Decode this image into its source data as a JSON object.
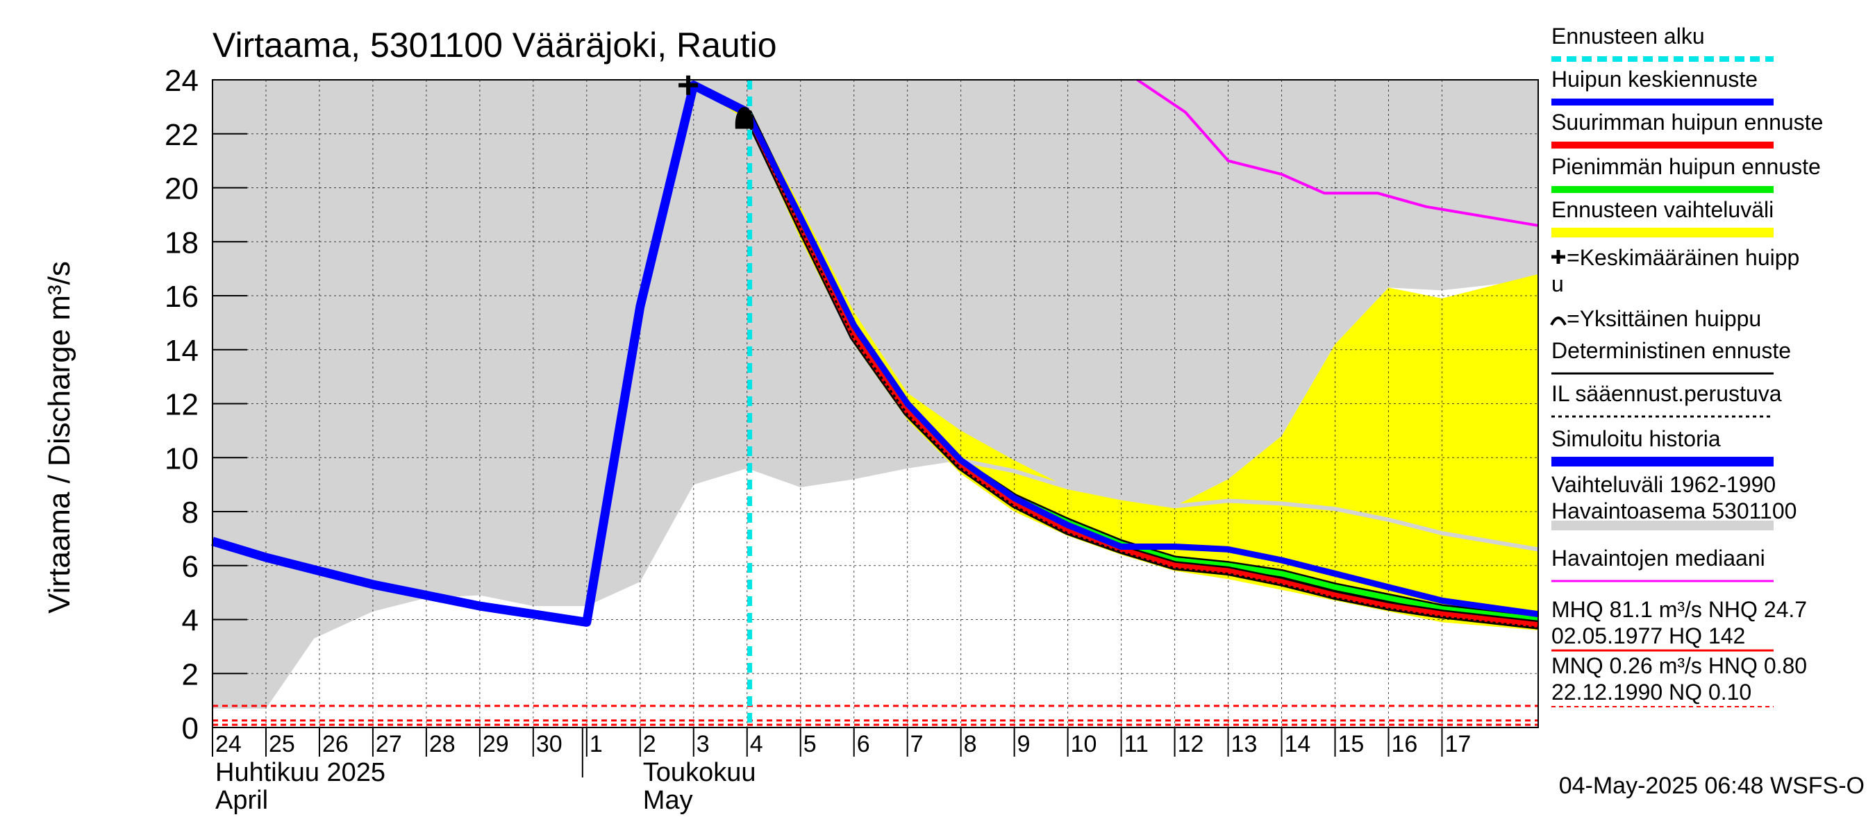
{
  "chart_data": {
    "type": "line",
    "title": "Virtaama, 5301100 Vääräjoki, Rautio",
    "ylabel": "Virtaama / Discharge    m³/s",
    "ylim": [
      0,
      24
    ],
    "yticks": [
      "0",
      "2",
      "4",
      "6",
      "8",
      "10",
      "12",
      "14",
      "16",
      "18",
      "20",
      "22",
      "24"
    ],
    "xlim": [
      24,
      48.8
    ],
    "xlabels": [
      {
        "x": 24,
        "label": "24"
      },
      {
        "x": 25,
        "label": "25"
      },
      {
        "x": 26,
        "label": "26"
      },
      {
        "x": 27,
        "label": "27"
      },
      {
        "x": 28,
        "label": "28"
      },
      {
        "x": 29,
        "label": "29"
      },
      {
        "x": 30,
        "label": "30"
      },
      {
        "x": 31,
        "label": "1"
      },
      {
        "x": 32,
        "label": "2"
      },
      {
        "x": 33,
        "label": "3"
      },
      {
        "x": 34,
        "label": "4"
      },
      {
        "x": 35,
        "label": "5"
      },
      {
        "x": 36,
        "label": "6"
      },
      {
        "x": 37,
        "label": "7"
      },
      {
        "x": 38,
        "label": "8"
      },
      {
        "x": 39,
        "label": "9"
      },
      {
        "x": 40,
        "label": "10"
      },
      {
        "x": 41,
        "label": "11"
      },
      {
        "x": 42,
        "label": "12"
      },
      {
        "x": 43,
        "label": "13"
      },
      {
        "x": 44,
        "label": "14"
      },
      {
        "x": 45,
        "label": "15"
      },
      {
        "x": 46,
        "label": "16"
      },
      {
        "x": 47,
        "label": "17"
      }
    ],
    "month_labels": [
      {
        "x": 24,
        "line1": "Huhtikuu  2025",
        "line2": "April"
      },
      {
        "x": 32,
        "line1": "Toukokuu",
        "line2": "May"
      }
    ],
    "forecast_start_x": 34.05,
    "series": [
      {
        "name": "Vaihteluväli 1962-1990 (upper)",
        "color": "#d3d3d3",
        "x": [
          24,
          25,
          26,
          27,
          28,
          29,
          30,
          31,
          32,
          33,
          34,
          35,
          36,
          37,
          38,
          39,
          40,
          41,
          42,
          43,
          44,
          45,
          46,
          47,
          48.8
        ],
        "values": [
          24,
          24,
          24,
          24,
          24,
          24,
          24,
          24,
          24,
          24,
          24,
          24,
          24,
          24,
          24,
          24,
          24,
          24,
          24,
          24,
          24,
          24,
          24,
          24,
          24
        ]
      },
      {
        "name": "Vaihteluväli 1962-1990 (lower)",
        "color": "#ffffff",
        "x": [
          24,
          25,
          25.9,
          27,
          28,
          29,
          30,
          31,
          32,
          33,
          34,
          35,
          36,
          37,
          38,
          39,
          40,
          41,
          42,
          43,
          44,
          45,
          46,
          47,
          48.8
        ],
        "values": [
          0.7,
          0.7,
          3.3,
          4.3,
          4.8,
          4.9,
          4.5,
          4.5,
          5.4,
          9.0,
          9.6,
          8.9,
          9.2,
          9.6,
          9.9,
          9.5,
          8.9,
          8.5,
          8.2,
          9.2,
          10.8,
          14.2,
          16.3,
          16.2,
          16.6
        ]
      },
      {
        "name": "Ennusteen vaihteluväli (upper)",
        "color": "#ffff00",
        "x": [
          33.2,
          34,
          35,
          36,
          37,
          38,
          39,
          40,
          41,
          42,
          43,
          44,
          45,
          46,
          47,
          48.8
        ],
        "values": [
          23.5,
          23.0,
          19.3,
          15.4,
          12.4,
          11.0,
          9.9,
          8.9,
          8.5,
          8.2,
          9.2,
          10.8,
          14.2,
          16.3,
          15.9,
          16.8
        ]
      },
      {
        "name": "Ennusteen vaihteluväli (lower)",
        "color": "#ffff00",
        "x": [
          33.2,
          34,
          35,
          36,
          37,
          38,
          39,
          40,
          41,
          42,
          43,
          44,
          45,
          46,
          47,
          48.8
        ],
        "values": [
          23.5,
          22.5,
          18.1,
          14.2,
          11.4,
          9.4,
          8.0,
          7.1,
          6.4,
          5.8,
          5.5,
          5.1,
          4.7,
          4.3,
          3.9,
          3.6
        ]
      },
      {
        "name": "Havaintojen mediaani",
        "color": "#ff00ff",
        "x": [
          41.3,
          42.2,
          43,
          44,
          44.8,
          45.8,
          46.7,
          48.8
        ],
        "values": [
          24.0,
          22.8,
          21.0,
          20.5,
          19.8,
          19.8,
          19.3,
          18.6
        ]
      },
      {
        "name": "Havaintoasema 5301100 median (grey)",
        "color": "#d3d3d3",
        "x": [
          38,
          39,
          40,
          41,
          42,
          43,
          44,
          45,
          46,
          47,
          48.8
        ],
        "values": [
          9.9,
          9.5,
          8.9,
          8.5,
          8.2,
          8.4,
          8.3,
          8.1,
          7.7,
          7.2,
          6.6
        ]
      },
      {
        "name": "Simuloitu historia",
        "color": "#0000ff",
        "x": [
          24,
          25,
          26,
          27,
          28,
          29,
          30,
          31,
          32,
          33,
          34
        ],
        "values": [
          6.9,
          6.3,
          5.8,
          5.3,
          4.9,
          4.5,
          4.2,
          3.9,
          15.6,
          23.8,
          22.8
        ]
      },
      {
        "name": "Suurimman huipun ennuste",
        "color": "#ff0000",
        "x": [
          34,
          35,
          36,
          37,
          38,
          39,
          40,
          41,
          42,
          43,
          44,
          45,
          46,
          47,
          48.8
        ],
        "values": [
          22.8,
          18.6,
          14.5,
          11.7,
          9.7,
          8.3,
          7.3,
          6.6,
          6.0,
          5.8,
          5.4,
          4.9,
          4.5,
          4.2,
          3.8
        ]
      },
      {
        "name": "Pienimmän huipun ennuste",
        "color": "#00ff00",
        "x": [
          34,
          35,
          36,
          37,
          38,
          39,
          40,
          41,
          42,
          43,
          44,
          45,
          46,
          47,
          48.8
        ],
        "values": [
          22.8,
          18.7,
          14.6,
          11.8,
          9.8,
          8.5,
          7.6,
          6.8,
          6.2,
          6.0,
          5.7,
          5.2,
          4.8,
          4.4,
          4.0
        ]
      },
      {
        "name": "IL sääennust.perustuva",
        "color": "#000000",
        "x": [
          34,
          35,
          36,
          37,
          38,
          39,
          40,
          41,
          42,
          43,
          44,
          45,
          46,
          47,
          48.8
        ],
        "values": [
          22.7,
          18.5,
          14.4,
          11.6,
          9.6,
          8.2,
          7.2,
          6.5,
          5.9,
          5.7,
          5.3,
          4.8,
          4.4,
          4.1,
          3.7
        ]
      },
      {
        "name": "Huipun keskiennuste",
        "color": "#0000ff",
        "x": [
          34,
          35,
          36,
          37,
          38,
          39,
          40,
          41,
          42,
          43,
          44,
          45,
          46,
          47,
          48.8
        ],
        "values": [
          22.8,
          18.9,
          14.9,
          12.0,
          9.9,
          8.5,
          7.5,
          6.7,
          6.7,
          6.6,
          6.2,
          5.7,
          5.2,
          4.7,
          4.2
        ]
      }
    ],
    "markers": [
      {
        "name": "Keskimääräinen huippu",
        "symbol": "plus",
        "x": 32.9,
        "y": 23.8
      },
      {
        "name": "Yksittäinen huippu",
        "symbol": "arc",
        "x": 33.95,
        "y": 22.7
      }
    ],
    "reference_lines": [
      {
        "name": "HNQ",
        "y": 0.8,
        "color": "#ff0000",
        "style": "dashed"
      },
      {
        "name": "MNQ",
        "y": 0.26,
        "color": "#ff0000",
        "style": "dashed"
      },
      {
        "name": "NQ",
        "y": 0.1,
        "color": "#ff0000",
        "style": "dashed"
      }
    ],
    "legend": {
      "items": [
        {
          "label": "Ennusteen alku",
          "color": "#00e5e5",
          "style": "dashed-thick"
        },
        {
          "label": "Huipun keskiennuste",
          "color": "#0000ff",
          "style": "solid-thick"
        },
        {
          "label": "Suurimman huipun ennuste",
          "color": "#ff0000",
          "style": "solid-thick"
        },
        {
          "label": "Pienimmän huipun ennuste",
          "color": "#00ee00",
          "style": "solid-thick"
        },
        {
          "label": "Ennusteen vaihteluväli",
          "color": "#ffff00",
          "style": "band"
        },
        {
          "label": "=Keskimääräinen huipp",
          "label2": "u",
          "color": "#000000",
          "style": "plus"
        },
        {
          "label": "=Yksittäinen huippu",
          "color": "#000000",
          "style": "arc"
        },
        {
          "label": "Deterministinen ennuste",
          "color": "#000000",
          "style": "solid-thin"
        },
        {
          "label": "IL sääennust.perustuva",
          "color": "#000000",
          "style": "dotted"
        },
        {
          "label": "Simuloitu historia",
          "color": "#0000ff",
          "style": "solid-thicker"
        },
        {
          "label": "Vaihteluväli 1962-1990",
          "label2": " Havaintoasema 5301100",
          "color": "#d3d3d3",
          "style": "band"
        },
        {
          "label": "Havaintojen mediaani",
          "color": "#ff00ff",
          "style": "solid-thin"
        },
        {
          "label": "MHQ 81.1 m³/s NHQ 24.7",
          "label2": "02.05.1977 HQ  142",
          "color": "#ff0000",
          "style": "solid-thin"
        },
        {
          "label": "MNQ 0.26 m³/s HNQ 0.80",
          "label2": "22.12.1990 NQ 0.10",
          "color": "#ff0000",
          "style": "dashed-thin"
        }
      ]
    },
    "footer": "04-May-2025 06:48 WSFS-O"
  }
}
